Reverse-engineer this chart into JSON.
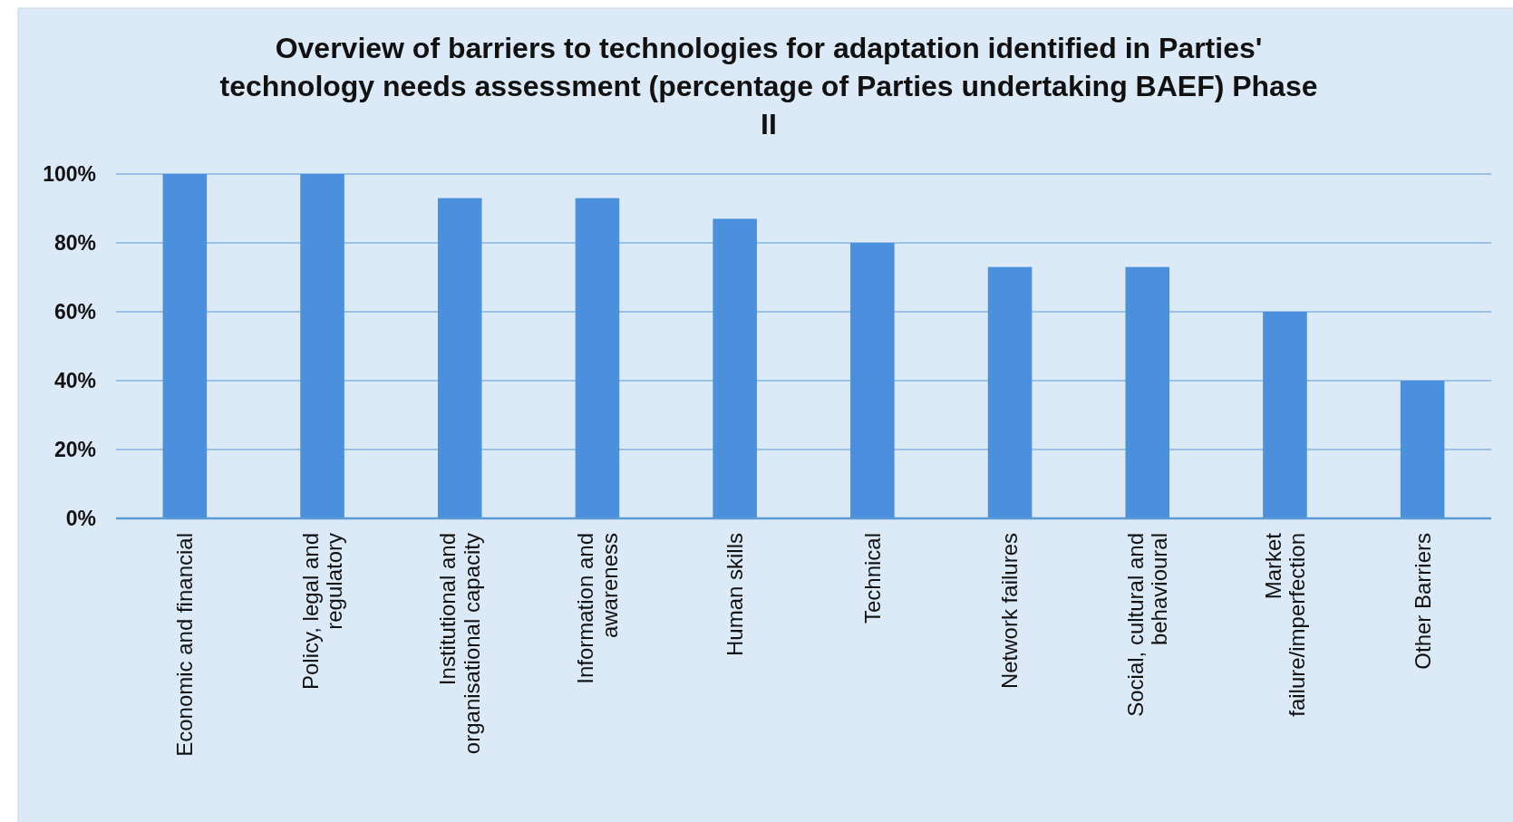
{
  "chart_data": {
    "type": "bar",
    "title": "Overview of barriers to technologies for adaptation identified in Parties' technology needs assessment (percentage of Parties undertaking BAEF) Phase II",
    "categories": [
      "Economic and financial",
      "Policy, legal and regulatory",
      "Institutional and organisational capacity",
      "Information and awareness",
      "Human skills",
      "Technical",
      "Network failures",
      "Social, cultural and behavioural",
      "Market failure/imperfection",
      "Other Barriers"
    ],
    "values": [
      100,
      100,
      93,
      93,
      87,
      80,
      73,
      73,
      60,
      40
    ],
    "color": "#4a90dc",
    "ylim": [
      0,
      100
    ],
    "yticks": [
      {
        "value": 0,
        "label": "0%"
      },
      {
        "value": 20,
        "label": "20%"
      },
      {
        "value": 40,
        "label": "40%"
      },
      {
        "value": 60,
        "label": "60%"
      },
      {
        "value": 80,
        "label": "80%"
      },
      {
        "value": 100,
        "label": "100%"
      }
    ],
    "grid": true
  }
}
